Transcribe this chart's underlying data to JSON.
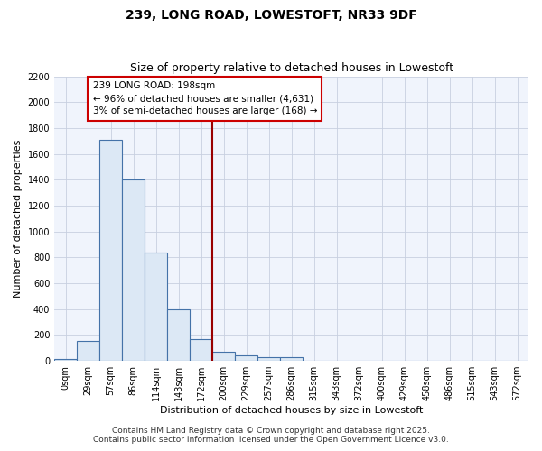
{
  "title1": "239, LONG ROAD, LOWESTOFT, NR33 9DF",
  "title2": "Size of property relative to detached houses in Lowestoft",
  "xlabel": "Distribution of detached houses by size in Lowestoft",
  "ylabel": "Number of detached properties",
  "bin_labels": [
    "0sqm",
    "29sqm",
    "57sqm",
    "86sqm",
    "114sqm",
    "143sqm",
    "172sqm",
    "200sqm",
    "229sqm",
    "257sqm",
    "286sqm",
    "315sqm",
    "343sqm",
    "372sqm",
    "400sqm",
    "429sqm",
    "458sqm",
    "486sqm",
    "515sqm",
    "543sqm",
    "572sqm"
  ],
  "bar_heights": [
    15,
    155,
    1710,
    1400,
    835,
    400,
    165,
    70,
    40,
    30,
    28,
    0,
    0,
    0,
    0,
    0,
    0,
    0,
    0,
    0,
    0
  ],
  "bar_color": "#dce8f5",
  "bar_edgecolor": "#4472a8",
  "vline_x_index": 7,
  "vline_color": "#990000",
  "annotation_line1": "239 LONG ROAD: 198sqm",
  "annotation_line2": "← 96% of detached houses are smaller (4,631)",
  "annotation_line3": "3% of semi-detached houses are larger (168) →",
  "annotation_box_edgecolor": "#cc0000",
  "annotation_box_facecolor": "#ffffff",
  "ylim": [
    0,
    2200
  ],
  "yticks": [
    0,
    200,
    400,
    600,
    800,
    1000,
    1200,
    1400,
    1600,
    1800,
    2000,
    2200
  ],
  "footer1": "Contains HM Land Registry data © Crown copyright and database right 2025.",
  "footer2": "Contains public sector information licensed under the Open Government Licence v3.0.",
  "plot_bg_color": "#f0f4fc",
  "fig_bg_color": "#ffffff",
  "grid_color": "#c8d0e0",
  "title_fontsize": 10,
  "subtitle_fontsize": 9,
  "axis_label_fontsize": 8,
  "tick_fontsize": 7,
  "annotation_fontsize": 7.5,
  "footer_fontsize": 6.5
}
